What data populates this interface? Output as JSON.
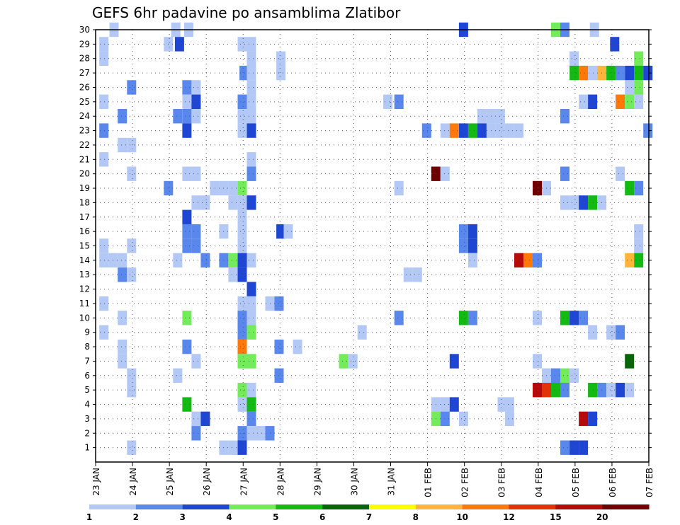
{
  "chart_data": {
    "type": "heatmap",
    "title": "GEFS 6hr padavine po ansamblima Zlatibor",
    "xlabel": "",
    "ylabel": "",
    "x_tick_labels": [
      "23 JAN",
      "24 JAN",
      "25 JAN",
      "26 JAN",
      "27 JAN",
      "28 JAN",
      "29 JAN",
      "30 JAN",
      "31 JAN",
      "01 FEB",
      "02 FEB",
      "03 FEB",
      "04 FEB",
      "05 FEB",
      "06 FEB",
      "07 FEB"
    ],
    "y_tick_labels": [
      "1",
      "2",
      "3",
      "4",
      "5",
      "6",
      "7",
      "8",
      "9",
      "10",
      "11",
      "12",
      "13",
      "14",
      "15",
      "16",
      "17",
      "18",
      "19",
      "20",
      "21",
      "22",
      "23",
      "24",
      "25",
      "26",
      "27",
      "28",
      "29",
      "30"
    ],
    "xlim_days": [
      0,
      15
    ],
    "ylim": [
      0,
      30
    ],
    "grid": true,
    "colorbar": {
      "levels": [
        "1",
        "2",
        "3",
        "4",
        "5",
        "6",
        "7",
        "8",
        "10",
        "12",
        "15",
        "20"
      ],
      "colors": [
        "#b4c8f5",
        "#5a87eb",
        "#1e46d2",
        "#73eb5a",
        "#14b914",
        "#0a640a",
        "#ffff00",
        "#ffb43c",
        "#ff780a",
        "#e1320a",
        "#b40a0a",
        "#6e0000"
      ]
    },
    "cells": [
      [
        30,
        0.375,
        1
      ],
      [
        30,
        2.05,
        1
      ],
      [
        30,
        2.4,
        1
      ],
      [
        30,
        9.85,
        3
      ],
      [
        30,
        12.35,
        4
      ],
      [
        30,
        12.6,
        2
      ],
      [
        30,
        13.4,
        1
      ],
      [
        29,
        0.1,
        1
      ],
      [
        29,
        1.85,
        1
      ],
      [
        29,
        2.15,
        3
      ],
      [
        29,
        3.85,
        1
      ],
      [
        29,
        4.1,
        1
      ],
      [
        29,
        13.95,
        3
      ],
      [
        28,
        0.1,
        1
      ],
      [
        28,
        4.1,
        1
      ],
      [
        28,
        4.9,
        1
      ],
      [
        28,
        12.85,
        1
      ],
      [
        28,
        14.6,
        4
      ],
      [
        27,
        3.9,
        2
      ],
      [
        27,
        4.1,
        1
      ],
      [
        27,
        4.9,
        1
      ],
      [
        27,
        12.85,
        5
      ],
      [
        27,
        13.1,
        10
      ],
      [
        27,
        13.35,
        1
      ],
      [
        27,
        13.6,
        8
      ],
      [
        27,
        13.85,
        5
      ],
      [
        27,
        14.1,
        2
      ],
      [
        27,
        14.35,
        3
      ],
      [
        27,
        14.6,
        5
      ],
      [
        27,
        14.85,
        3
      ],
      [
        26,
        0.85,
        2
      ],
      [
        26,
        2.35,
        2
      ],
      [
        26,
        2.6,
        1
      ],
      [
        26,
        4.1,
        1
      ],
      [
        26,
        14.35,
        1
      ],
      [
        26,
        14.6,
        4
      ],
      [
        25,
        0.1,
        1
      ],
      [
        25,
        2.35,
        1
      ],
      [
        25,
        2.6,
        3
      ],
      [
        25,
        3.85,
        2
      ],
      [
        25,
        4.1,
        1
      ],
      [
        25,
        7.8,
        1
      ],
      [
        25,
        8.1,
        2
      ],
      [
        25,
        13.1,
        1
      ],
      [
        25,
        13.35,
        3
      ],
      [
        25,
        14.1,
        10
      ],
      [
        25,
        14.35,
        4
      ],
      [
        25,
        14.6,
        1
      ],
      [
        24,
        0.6,
        2
      ],
      [
        24,
        2.1,
        2
      ],
      [
        24,
        2.35,
        2
      ],
      [
        24,
        2.6,
        1
      ],
      [
        24,
        3.85,
        1
      ],
      [
        24,
        4.1,
        1
      ],
      [
        24,
        10.35,
        1
      ],
      [
        24,
        10.6,
        1
      ],
      [
        24,
        10.85,
        1
      ],
      [
        24,
        12.6,
        2
      ],
      [
        23,
        0.1,
        2
      ],
      [
        23,
        2.35,
        3
      ],
      [
        23,
        3.85,
        1
      ],
      [
        23,
        4.1,
        3
      ],
      [
        23,
        8.85,
        2
      ],
      [
        23,
        9.35,
        1
      ],
      [
        23,
        9.6,
        10
      ],
      [
        23,
        9.85,
        3
      ],
      [
        23,
        10.1,
        5
      ],
      [
        23,
        10.35,
        3
      ],
      [
        23,
        10.6,
        1
      ],
      [
        23,
        10.85,
        1
      ],
      [
        23,
        11.1,
        1
      ],
      [
        23,
        11.35,
        1
      ],
      [
        23,
        14.85,
        2
      ],
      [
        22,
        0.6,
        1
      ],
      [
        22,
        0.85,
        1
      ],
      [
        21,
        0.1,
        1
      ],
      [
        21,
        4.1,
        1
      ],
      [
        20,
        0.85,
        1
      ],
      [
        20,
        2.35,
        1
      ],
      [
        20,
        2.6,
        1
      ],
      [
        20,
        4.1,
        2
      ],
      [
        20,
        9.1,
        20
      ],
      [
        20,
        9.35,
        1
      ],
      [
        20,
        12.6,
        2
      ],
      [
        20,
        14.1,
        1
      ],
      [
        19,
        1.85,
        2
      ],
      [
        19,
        3.1,
        1
      ],
      [
        19,
        3.35,
        1
      ],
      [
        19,
        3.6,
        1
      ],
      [
        19,
        3.85,
        4
      ],
      [
        19,
        8.1,
        1
      ],
      [
        19,
        11.85,
        20
      ],
      [
        19,
        12.1,
        1
      ],
      [
        19,
        14.35,
        5
      ],
      [
        19,
        14.6,
        2
      ],
      [
        18,
        2.6,
        1
      ],
      [
        18,
        2.85,
        1
      ],
      [
        18,
        3.6,
        1
      ],
      [
        18,
        3.85,
        1
      ],
      [
        18,
        4.1,
        3
      ],
      [
        18,
        12.6,
        1
      ],
      [
        18,
        12.85,
        1
      ],
      [
        18,
        13.1,
        3
      ],
      [
        18,
        13.35,
        5
      ],
      [
        18,
        13.6,
        1
      ],
      [
        17,
        2.35,
        3
      ],
      [
        17,
        3.85,
        1
      ],
      [
        16,
        2.35,
        2
      ],
      [
        16,
        2.6,
        2
      ],
      [
        16,
        3.35,
        1
      ],
      [
        16,
        3.85,
        1
      ],
      [
        16,
        4.9,
        3
      ],
      [
        16,
        5.1,
        1
      ],
      [
        16,
        9.85,
        2
      ],
      [
        16,
        10.1,
        3
      ],
      [
        16,
        14.6,
        1
      ],
      [
        15,
        0.1,
        1
      ],
      [
        15,
        0.85,
        1
      ],
      [
        15,
        2.35,
        2
      ],
      [
        15,
        2.6,
        2
      ],
      [
        15,
        3.85,
        1
      ],
      [
        15,
        9.85,
        2
      ],
      [
        15,
        10.1,
        3
      ],
      [
        15,
        14.6,
        1
      ],
      [
        14,
        0.1,
        1
      ],
      [
        14,
        0.35,
        1
      ],
      [
        14,
        0.6,
        1
      ],
      [
        14,
        2.1,
        1
      ],
      [
        14,
        2.85,
        2
      ],
      [
        14,
        3.35,
        2
      ],
      [
        14,
        3.6,
        4
      ],
      [
        14,
        3.85,
        3
      ],
      [
        14,
        4.1,
        1
      ],
      [
        14,
        10.1,
        1
      ],
      [
        14,
        11.35,
        15
      ],
      [
        14,
        11.6,
        10
      ],
      [
        14,
        11.85,
        2
      ],
      [
        14,
        14.35,
        8
      ],
      [
        14,
        14.6,
        5
      ],
      [
        13,
        0.6,
        2
      ],
      [
        13,
        0.85,
        1
      ],
      [
        13,
        3.6,
        1
      ],
      [
        13,
        3.85,
        3
      ],
      [
        13,
        8.35,
        1
      ],
      [
        13,
        8.6,
        1
      ],
      [
        12,
        4.1,
        3
      ],
      [
        11,
        0.1,
        1
      ],
      [
        11,
        3.85,
        1
      ],
      [
        11,
        4.1,
        1
      ],
      [
        11,
        4.6,
        1
      ],
      [
        11,
        4.85,
        2
      ],
      [
        10,
        0.6,
        1
      ],
      [
        10,
        2.35,
        4
      ],
      [
        10,
        3.85,
        2
      ],
      [
        10,
        4.1,
        1
      ],
      [
        10,
        8.1,
        2
      ],
      [
        10,
        9.85,
        5
      ],
      [
        10,
        10.1,
        2
      ],
      [
        10,
        11.85,
        1
      ],
      [
        10,
        12.6,
        5
      ],
      [
        10,
        12.85,
        3
      ],
      [
        10,
        13.1,
        2
      ],
      [
        9,
        0.1,
        1
      ],
      [
        9,
        3.85,
        2
      ],
      [
        9,
        4.1,
        4
      ],
      [
        9,
        7.1,
        1
      ],
      [
        9,
        13.35,
        1
      ],
      [
        9,
        13.85,
        1
      ],
      [
        9,
        14.1,
        2
      ],
      [
        8,
        0.6,
        1
      ],
      [
        8,
        2.35,
        2
      ],
      [
        8,
        3.85,
        10
      ],
      [
        8,
        4.85,
        2
      ],
      [
        8,
        5.35,
        1
      ],
      [
        7,
        0.6,
        1
      ],
      [
        7,
        2.6,
        1
      ],
      [
        7,
        3.85,
        4
      ],
      [
        7,
        4.1,
        4
      ],
      [
        7,
        6.6,
        4
      ],
      [
        7,
        6.85,
        1
      ],
      [
        7,
        9.6,
        3
      ],
      [
        7,
        11.85,
        1
      ],
      [
        7,
        14.35,
        6
      ],
      [
        6,
        0.85,
        1
      ],
      [
        6,
        2.1,
        1
      ],
      [
        6,
        4.85,
        2
      ],
      [
        6,
        12.1,
        1
      ],
      [
        6,
        12.35,
        2
      ],
      [
        6,
        12.6,
        4
      ],
      [
        6,
        12.85,
        1
      ],
      [
        5,
        0.85,
        1
      ],
      [
        5,
        3.85,
        4
      ],
      [
        5,
        4.1,
        1
      ],
      [
        5,
        11.85,
        15
      ],
      [
        5,
        12.1,
        12
      ],
      [
        5,
        12.35,
        5
      ],
      [
        5,
        12.6,
        2
      ],
      [
        5,
        13.35,
        5
      ],
      [
        5,
        13.6,
        2
      ],
      [
        5,
        13.85,
        1
      ],
      [
        5,
        14.1,
        3
      ],
      [
        5,
        14.35,
        1
      ],
      [
        4,
        2.35,
        5
      ],
      [
        4,
        3.85,
        1
      ],
      [
        4,
        4.1,
        5
      ],
      [
        4,
        9.1,
        1
      ],
      [
        4,
        9.35,
        1
      ],
      [
        4,
        9.6,
        3
      ],
      [
        4,
        10.9,
        1
      ],
      [
        4,
        11.1,
        1
      ],
      [
        3,
        2.6,
        1
      ],
      [
        3,
        2.85,
        3
      ],
      [
        3,
        4.1,
        2
      ],
      [
        3,
        9.1,
        4
      ],
      [
        3,
        9.35,
        2
      ],
      [
        3,
        9.85,
        1
      ],
      [
        3,
        11.1,
        1
      ],
      [
        3,
        13.1,
        15
      ],
      [
        3,
        13.35,
        3
      ],
      [
        2,
        2.6,
        2
      ],
      [
        2,
        3.85,
        2
      ],
      [
        2,
        4.1,
        1
      ],
      [
        2,
        4.35,
        1
      ],
      [
        2,
        4.6,
        2
      ],
      [
        1,
        0.85,
        1
      ],
      [
        1,
        3.35,
        1
      ],
      [
        1,
        3.6,
        1
      ],
      [
        1,
        3.85,
        3
      ],
      [
        1,
        12.6,
        2
      ],
      [
        1,
        12.85,
        3
      ],
      [
        1,
        13.1,
        3
      ]
    ]
  }
}
